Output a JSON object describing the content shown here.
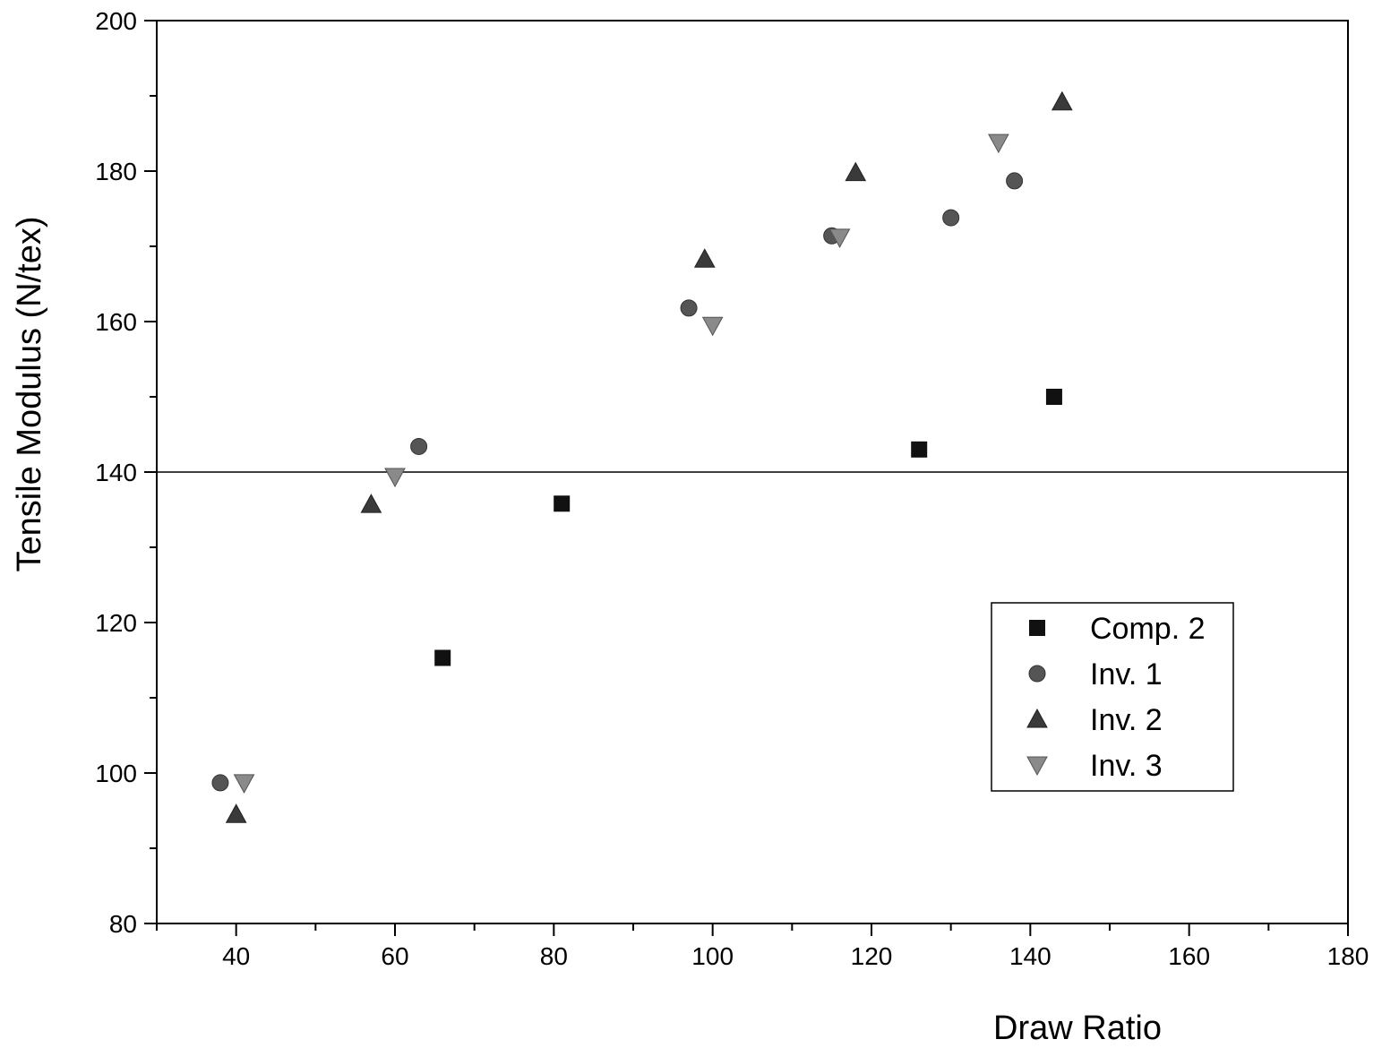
{
  "chart_data": {
    "type": "scatter",
    "xlabel": "Draw Ratio",
    "ylabel": "Tensile Modulus (N/tex)",
    "xlim": [
      30,
      180
    ],
    "ylim": [
      80,
      200
    ],
    "x_ticks": [
      40,
      60,
      80,
      100,
      120,
      140,
      160,
      180
    ],
    "y_ticks": [
      80,
      100,
      120,
      140,
      160,
      180,
      200
    ],
    "reference_line": {
      "y": 140
    },
    "legend_position": "lower-right",
    "grid": false,
    "series": [
      {
        "name": "Comp. 2",
        "marker": "square",
        "color": "#111111",
        "points": [
          [
            66,
            115.3
          ],
          [
            81,
            135.8
          ],
          [
            126,
            143
          ],
          [
            143,
            150
          ]
        ]
      },
      {
        "name": "Inv. 1",
        "marker": "circle",
        "color": "#555555",
        "points": [
          [
            38,
            98.7
          ],
          [
            63,
            143.4
          ],
          [
            97,
            161.8
          ],
          [
            115,
            171.4
          ],
          [
            130,
            173.8
          ],
          [
            138,
            178.7
          ]
        ]
      },
      {
        "name": "Inv. 2",
        "marker": "triangle-up",
        "color": "#3a3a3a",
        "points": [
          [
            40,
            94.5
          ],
          [
            57,
            135.7
          ],
          [
            99,
            168.3
          ],
          [
            118,
            179.8
          ],
          [
            144,
            189.2
          ]
        ]
      },
      {
        "name": "Inv. 3",
        "marker": "triangle-down",
        "color": "#8a8a8a",
        "points": [
          [
            41,
            98.7
          ],
          [
            60,
            139.4
          ],
          [
            100,
            159.5
          ],
          [
            116,
            171.2
          ],
          [
            136,
            183.8
          ]
        ]
      }
    ]
  }
}
